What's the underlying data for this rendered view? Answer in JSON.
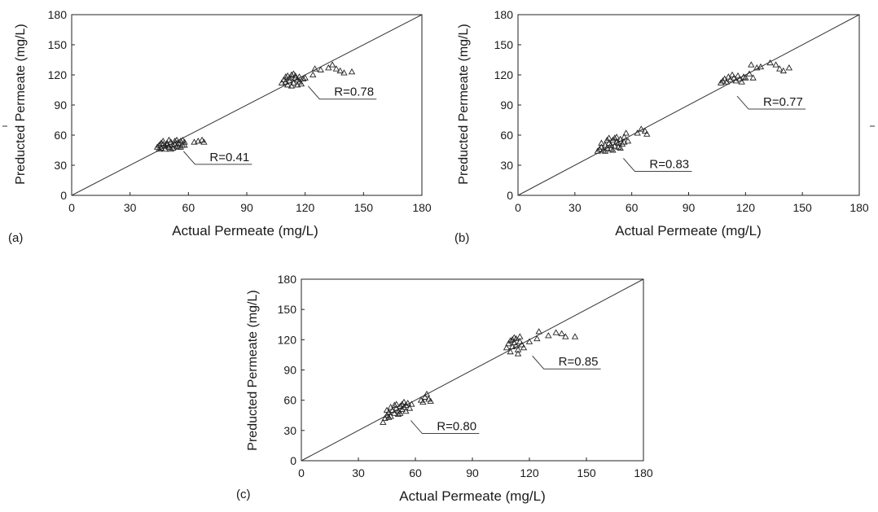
{
  "chart_data": [
    {
      "type": "scatter",
      "panel_label": "(a)",
      "xlabel": "Actual Permeate (mg/L)",
      "ylabel": "Preducted Permeate (mg/L)",
      "xlim": [
        0,
        180
      ],
      "ylim": [
        0,
        180
      ],
      "xticks": [
        0,
        30,
        60,
        90,
        120,
        150,
        180
      ],
      "yticks": [
        0,
        30,
        60,
        90,
        120,
        150,
        180
      ],
      "reference_line": "y=x",
      "grid": false,
      "annotations": [
        {
          "text": "R=0.41",
          "x": 55,
          "y": 52
        },
        {
          "text": "R=0.78",
          "x": 119,
          "y": 117
        }
      ],
      "series": [
        {
          "marker": "triangle",
          "points": [
            [
              44,
              48
            ],
            [
              45,
              50
            ],
            [
              46,
              47
            ],
            [
              47,
              51
            ],
            [
              48,
              49
            ],
            [
              49,
              52
            ],
            [
              50,
              48
            ],
            [
              51,
              53
            ],
            [
              52,
              50
            ],
            [
              53,
              51
            ],
            [
              54,
              49
            ],
            [
              55,
              52
            ],
            [
              56,
              54
            ],
            [
              57,
              50
            ],
            [
              58,
              53
            ],
            [
              46,
              52
            ],
            [
              48,
              46
            ],
            [
              50,
              55
            ],
            [
              52,
              47
            ],
            [
              54,
              55
            ],
            [
              56,
              48
            ],
            [
              47,
              54
            ],
            [
              49,
              50
            ],
            [
              51,
              46
            ],
            [
              53,
              54
            ],
            [
              55,
              48
            ],
            [
              57,
              55
            ],
            [
              45,
              46
            ],
            [
              58,
              50
            ],
            [
              63,
              53
            ],
            [
              65,
              54
            ],
            [
              67,
              55
            ],
            [
              68,
              53
            ],
            [
              108,
              112
            ],
            [
              109,
              115
            ],
            [
              110,
              118
            ],
            [
              111,
              110
            ],
            [
              112,
              114
            ],
            [
              113,
              120
            ],
            [
              114,
              112
            ],
            [
              115,
              117
            ],
            [
              116,
              115
            ],
            [
              117,
              113
            ],
            [
              118,
              111
            ],
            [
              119,
              116
            ],
            [
              110,
              113
            ],
            [
              112,
              117
            ],
            [
              114,
              121
            ],
            [
              116,
              110
            ],
            [
              111,
              119
            ],
            [
              113,
              109
            ],
            [
              115,
              119
            ],
            [
              117,
              118
            ],
            [
              120,
              117
            ],
            [
              124,
              120
            ],
            [
              125,
              126
            ],
            [
              128,
              125
            ],
            [
              132,
              127
            ],
            [
              134,
              130
            ],
            [
              136,
              126
            ],
            [
              138,
              124
            ],
            [
              140,
              122
            ],
            [
              144,
              123
            ]
          ]
        }
      ]
    },
    {
      "type": "scatter",
      "panel_label": "(b)",
      "xlabel": "Actual Permeate (mg/L)",
      "ylabel": "Preducted Permeate (mg/L)",
      "xlim": [
        0,
        180
      ],
      "ylim": [
        0,
        180
      ],
      "xticks": [
        0,
        30,
        60,
        90,
        120,
        150,
        180
      ],
      "yticks": [
        0,
        30,
        60,
        90,
        120,
        150,
        180
      ],
      "reference_line": "y=x",
      "grid": false,
      "annotations": [
        {
          "text": "R=0.83",
          "x": 53,
          "y": 45
        },
        {
          "text": "R=0.77",
          "x": 113,
          "y": 107
        }
      ],
      "series": [
        {
          "marker": "triangle",
          "points": [
            [
              42,
              44
            ],
            [
              43,
              46
            ],
            [
              44,
              48
            ],
            [
              45,
              45
            ],
            [
              46,
              50
            ],
            [
              47,
              47
            ],
            [
              48,
              52
            ],
            [
              49,
              46
            ],
            [
              50,
              55
            ],
            [
              51,
              49
            ],
            [
              52,
              53
            ],
            [
              53,
              48
            ],
            [
              54,
              56
            ],
            [
              55,
              51
            ],
            [
              56,
              58
            ],
            [
              57,
              62
            ],
            [
              58,
              54
            ],
            [
              44,
              52
            ],
            [
              46,
              44
            ],
            [
              48,
              57
            ],
            [
              50,
              45
            ],
            [
              52,
              58
            ],
            [
              54,
              47
            ],
            [
              56,
              53
            ],
            [
              47,
              55
            ],
            [
              49,
              50
            ],
            [
              51,
              57
            ],
            [
              53,
              52
            ],
            [
              63,
              62
            ],
            [
              65,
              66
            ],
            [
              67,
              64
            ],
            [
              68,
              61
            ],
            [
              107,
              112
            ],
            [
              108,
              114
            ],
            [
              109,
              116
            ],
            [
              110,
              113
            ],
            [
              111,
              118
            ],
            [
              112,
              115
            ],
            [
              113,
              120
            ],
            [
              114,
              117
            ],
            [
              115,
              114
            ],
            [
              116,
              119
            ],
            [
              117,
              116
            ],
            [
              118,
              113
            ],
            [
              119,
              118
            ],
            [
              120,
              117
            ],
            [
              122,
              121
            ],
            [
              123,
              130
            ],
            [
              124,
              117
            ],
            [
              126,
              127
            ],
            [
              128,
              128
            ],
            [
              133,
              132
            ],
            [
              136,
              130
            ],
            [
              138,
              126
            ],
            [
              140,
              124
            ],
            [
              143,
              127
            ]
          ]
        }
      ]
    },
    {
      "type": "scatter",
      "panel_label": "(c)",
      "xlabel": "Actual Permeate (mg/L)",
      "ylabel": "Preducted Permeate (mg/L)",
      "xlim": [
        0,
        180
      ],
      "ylim": [
        0,
        180
      ],
      "xticks": [
        0,
        30,
        60,
        90,
        120,
        150,
        180
      ],
      "yticks": [
        0,
        30,
        60,
        90,
        120,
        150,
        180
      ],
      "reference_line": "y=x",
      "grid": false,
      "annotations": [
        {
          "text": "R=0.80",
          "x": 55,
          "y": 48
        },
        {
          "text": "R=0.85",
          "x": 119,
          "y": 112
        }
      ],
      "series": [
        {
          "marker": "triangle",
          "points": [
            [
              43,
              38
            ],
            [
              44,
              42
            ],
            [
              45,
              45
            ],
            [
              46,
              48
            ],
            [
              47,
              44
            ],
            [
              48,
              50
            ],
            [
              49,
              47
            ],
            [
              50,
              52
            ],
            [
              51,
              49
            ],
            [
              52,
              54
            ],
            [
              53,
              51
            ],
            [
              54,
              53
            ],
            [
              55,
              55
            ],
            [
              56,
              57
            ],
            [
              57,
              52
            ],
            [
              58,
              56
            ],
            [
              45,
              50
            ],
            [
              47,
              53
            ],
            [
              49,
              55
            ],
            [
              51,
              46
            ],
            [
              53,
              56
            ],
            [
              55,
              49
            ],
            [
              46,
              43
            ],
            [
              50,
              56
            ],
            [
              52,
              47
            ],
            [
              54,
              58
            ],
            [
              63,
              60
            ],
            [
              64,
              58
            ],
            [
              65,
              63
            ],
            [
              66,
              66
            ],
            [
              67,
              61
            ],
            [
              68,
              59
            ],
            [
              108,
              112
            ],
            [
              109,
              116
            ],
            [
              110,
              119
            ],
            [
              111,
              113
            ],
            [
              112,
              117
            ],
            [
              113,
              121
            ],
            [
              114,
              110
            ],
            [
              115,
              118
            ],
            [
              116,
              115
            ],
            [
              117,
              112
            ],
            [
              110,
              108
            ],
            [
              112,
              122
            ],
            [
              114,
              106
            ],
            [
              111,
              120
            ],
            [
              113,
              114
            ],
            [
              115,
              123
            ],
            [
              120,
              118
            ],
            [
              124,
              121
            ],
            [
              125,
              128
            ],
            [
              130,
              124
            ],
            [
              134,
              127
            ],
            [
              137,
              126
            ],
            [
              139,
              123
            ],
            [
              144,
              123
            ]
          ]
        }
      ]
    }
  ]
}
